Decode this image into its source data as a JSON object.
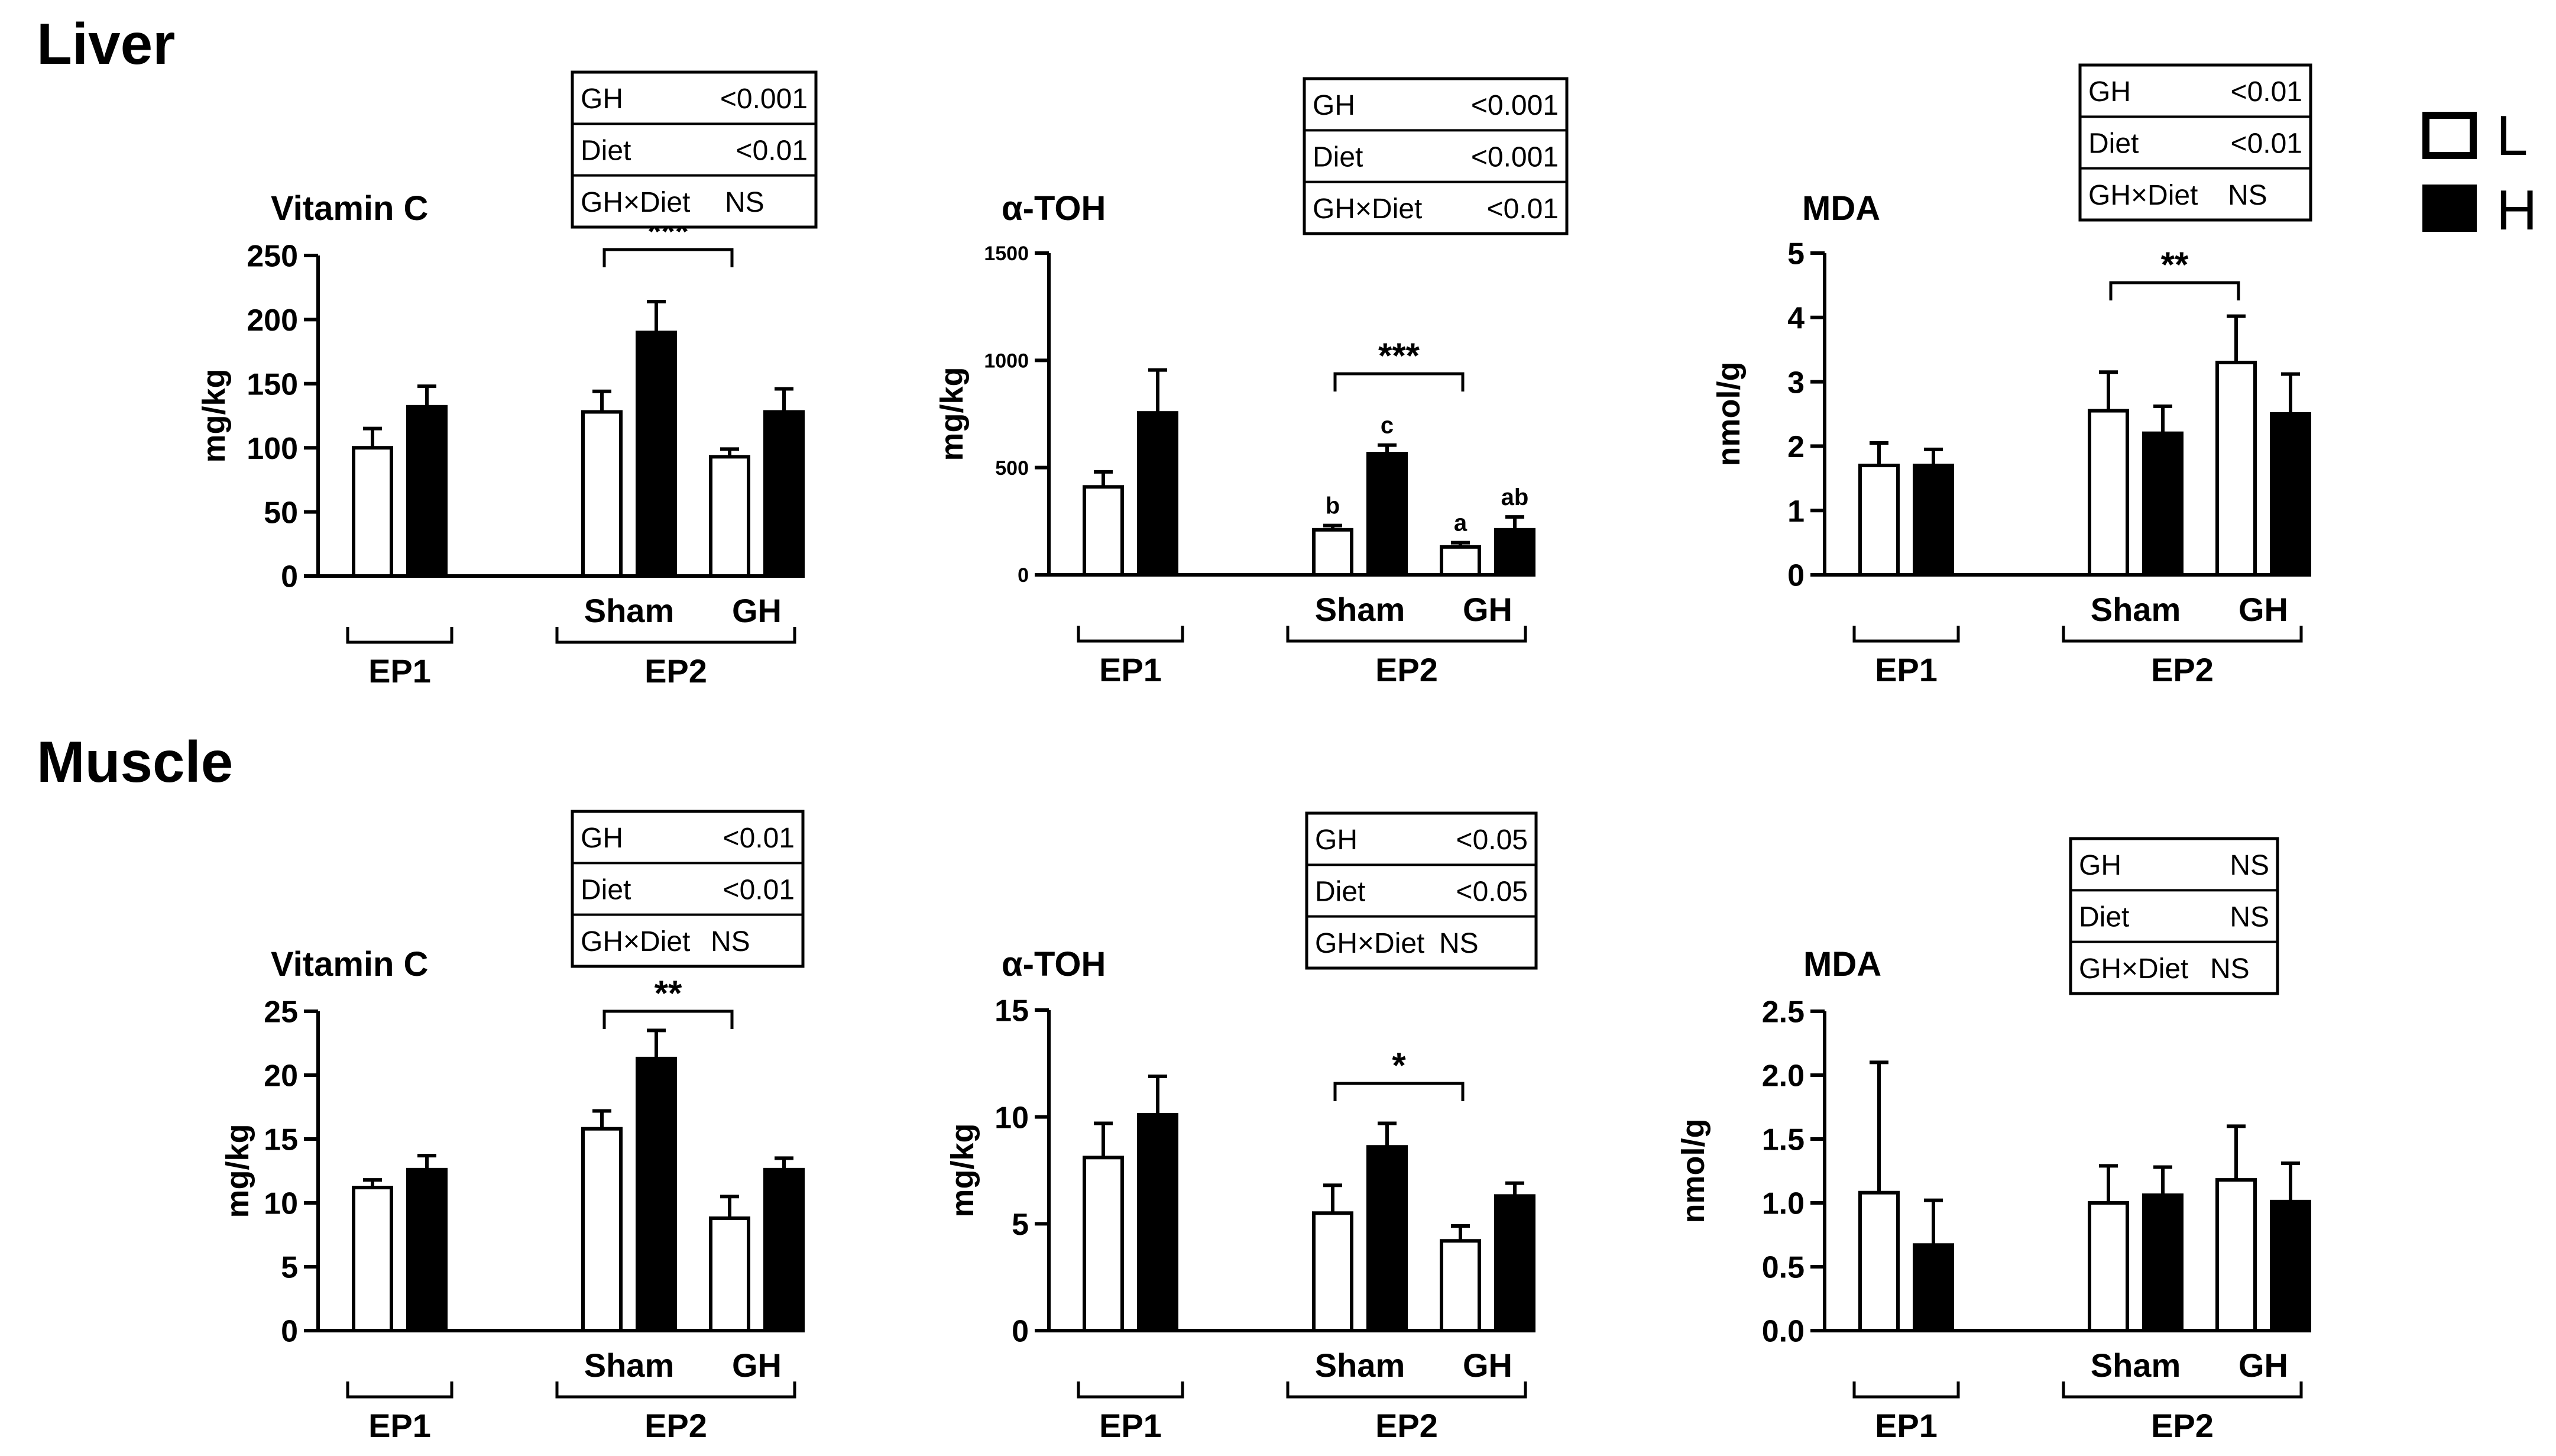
{
  "sections": [
    {
      "title": "Liver",
      "charts": [
        0,
        1,
        2
      ]
    },
    {
      "title": "Muscle",
      "charts": [
        3,
        4,
        5
      ]
    }
  ],
  "legend": [
    {
      "label": "L",
      "color": "#ffffff"
    },
    {
      "label": "H",
      "color": "#000000"
    }
  ],
  "chart_data": [
    {
      "type": "bar",
      "section": "Liver",
      "title": "Vitamin C",
      "ylabel": "mg/kg",
      "ylim": [
        0,
        250
      ],
      "yticks": [
        "0",
        "50",
        "100",
        "150",
        "200",
        "250"
      ],
      "ytick_values": [
        0,
        50,
        100,
        150,
        200,
        250
      ],
      "groups": [
        "EP1",
        "EP2"
      ],
      "subgroups": [
        "Sham",
        "GH"
      ],
      "series": [
        {
          "name": "L",
          "values": [
            100,
            128,
            93
          ],
          "errors": [
            15,
            16,
            6
          ]
        },
        {
          "name": "H",
          "values": [
            132,
            190,
            128
          ],
          "errors": [
            16,
            24,
            18
          ]
        }
      ],
      "significance": {
        "from": "Sham",
        "to": "GH",
        "label": "***"
      },
      "letters": [],
      "stats": [
        [
          "GH",
          "<0.001"
        ],
        [
          "Diet",
          "<0.01"
        ],
        [
          "GH×Diet",
          "NS"
        ]
      ]
    },
    {
      "type": "bar",
      "section": "Liver",
      "title": "α-TOH",
      "ylabel": "mg/kg",
      "ylim": [
        0,
        1500
      ],
      "yticks": [
        "0",
        "500",
        "1000",
        "1500"
      ],
      "ytick_values": [
        0,
        500,
        1000,
        1500
      ],
      "groups": [
        "EP1",
        "EP2"
      ],
      "subgroups": [
        "Sham",
        "GH"
      ],
      "series": [
        {
          "name": "L",
          "values": [
            410,
            210,
            130
          ],
          "errors": [
            70,
            20,
            20
          ]
        },
        {
          "name": "H",
          "values": [
            755,
            565,
            210
          ],
          "errors": [
            200,
            40,
            60
          ]
        }
      ],
      "significance": {
        "from": "Sham",
        "to": "GH",
        "label": "***"
      },
      "letters": [
        "b",
        "c",
        "a",
        "ab"
      ],
      "stats": [
        [
          "GH",
          "<0.001"
        ],
        [
          "Diet",
          "<0.001"
        ],
        [
          "GH×Diet",
          "<0.01"
        ]
      ]
    },
    {
      "type": "bar",
      "section": "Liver",
      "title": "MDA",
      "ylabel": "nmol/g",
      "ylim": [
        0,
        5
      ],
      "yticks": [
        "0",
        "1",
        "2",
        "3",
        "4",
        "5"
      ],
      "ytick_values": [
        0,
        1,
        2,
        3,
        4,
        5
      ],
      "groups": [
        "EP1",
        "EP2"
      ],
      "subgroups": [
        "Sham",
        "GH"
      ],
      "series": [
        {
          "name": "L",
          "values": [
            1.7,
            2.55,
            3.3
          ],
          "errors": [
            0.35,
            0.6,
            0.72
          ]
        },
        {
          "name": "H",
          "values": [
            1.7,
            2.2,
            2.5
          ],
          "errors": [
            0.25,
            0.42,
            0.62
          ]
        }
      ],
      "significance": {
        "from": "Sham",
        "to": "GH",
        "label": "**"
      },
      "letters": [],
      "stats": [
        [
          "GH",
          "<0.01"
        ],
        [
          "Diet",
          "<0.01"
        ],
        [
          "GH×Diet",
          "NS"
        ]
      ]
    },
    {
      "type": "bar",
      "section": "Muscle",
      "title": "Vitamin C",
      "ylabel": "mg/kg",
      "ylim": [
        0,
        25
      ],
      "yticks": [
        "0",
        "5",
        "10",
        "15",
        "20",
        "25"
      ],
      "ytick_values": [
        0,
        5,
        10,
        15,
        20,
        25
      ],
      "groups": [
        "EP1",
        "EP2"
      ],
      "subgroups": [
        "Sham",
        "GH"
      ],
      "series": [
        {
          "name": "L",
          "values": [
            11.2,
            15.8,
            8.8
          ],
          "errors": [
            0.6,
            1.4,
            1.7
          ]
        },
        {
          "name": "H",
          "values": [
            12.6,
            21.3,
            12.6
          ],
          "errors": [
            1.1,
            2.2,
            0.9
          ]
        }
      ],
      "significance": {
        "from": "Sham",
        "to": "GH",
        "label": "**"
      },
      "letters": [],
      "stats": [
        [
          "GH",
          "<0.01"
        ],
        [
          "Diet",
          "<0.01"
        ],
        [
          "GH×Diet",
          "NS"
        ]
      ]
    },
    {
      "type": "bar",
      "section": "Muscle",
      "title": "α-TOH",
      "ylabel": "mg/kg",
      "ylim": [
        0,
        15
      ],
      "yticks": [
        "0",
        "5",
        "10",
        "15"
      ],
      "ytick_values": [
        0,
        5,
        10,
        15
      ],
      "groups": [
        "EP1",
        "EP2"
      ],
      "subgroups": [
        "Sham",
        "GH"
      ],
      "series": [
        {
          "name": "L",
          "values": [
            8.1,
            5.5,
            4.2
          ],
          "errors": [
            1.6,
            1.3,
            0.7
          ]
        },
        {
          "name": "H",
          "values": [
            10.1,
            8.6,
            6.3
          ],
          "errors": [
            1.8,
            1.1,
            0.6
          ]
        }
      ],
      "significance": {
        "from": "Sham",
        "to": "GH",
        "label": "*"
      },
      "letters": [],
      "stats": [
        [
          "GH",
          "<0.05"
        ],
        [
          "Diet",
          "<0.05"
        ],
        [
          "GH×Diet",
          "NS"
        ]
      ]
    },
    {
      "type": "bar",
      "section": "Muscle",
      "title": "MDA",
      "ylabel": "nmol/g",
      "ylim": [
        0,
        2.5
      ],
      "yticks": [
        "0.0",
        "0.5",
        "1.0",
        "1.5",
        "2.0",
        "2.5"
      ],
      "ytick_values": [
        0,
        0.5,
        1.0,
        1.5,
        2.0,
        2.5
      ],
      "groups": [
        "EP1",
        "EP2"
      ],
      "subgroups": [
        "Sham",
        "GH"
      ],
      "series": [
        {
          "name": "L",
          "values": [
            1.08,
            1.0,
            1.18
          ],
          "errors": [
            1.02,
            0.29,
            0.42
          ]
        },
        {
          "name": "H",
          "values": [
            0.67,
            1.06,
            1.01
          ],
          "errors": [
            0.35,
            0.22,
            0.3
          ]
        }
      ],
      "significance": null,
      "letters": [],
      "stats": [
        [
          "GH",
          "NS"
        ],
        [
          "Diet",
          "NS"
        ],
        [
          "GH×Diet",
          "NS"
        ]
      ]
    }
  ]
}
